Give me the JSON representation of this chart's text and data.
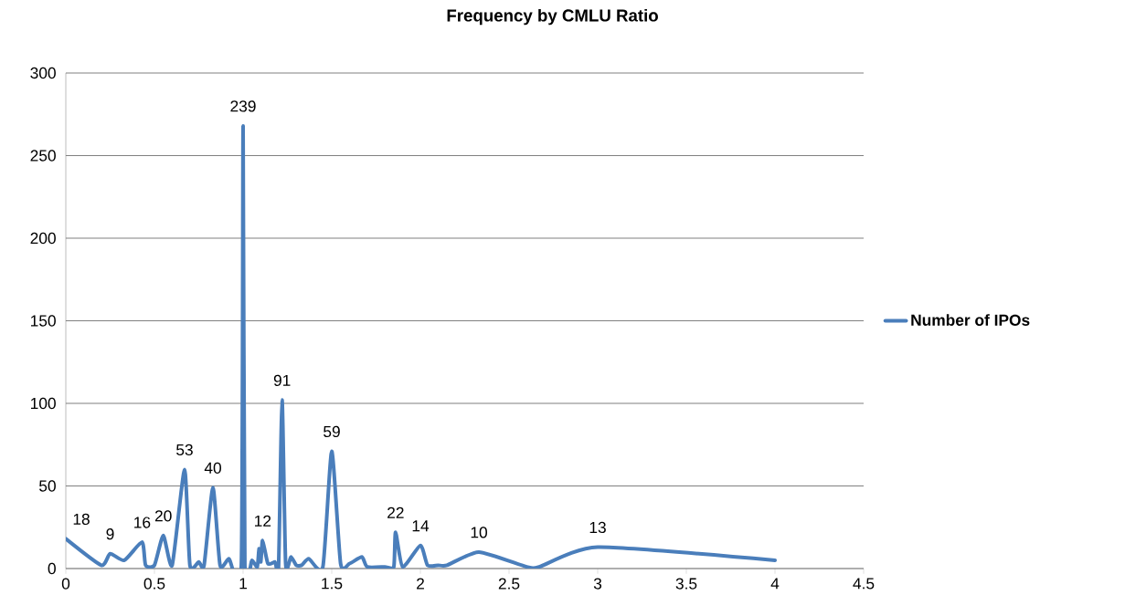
{
  "chart_data": {
    "type": "line",
    "title": "Frequency by CMLU Ratio",
    "series": [
      {
        "name": "Number of IPOs",
        "color": "#4a7ebb",
        "x": [
          0,
          0.2,
          0.25,
          0.33,
          0.43,
          0.45,
          0.5,
          0.55,
          0.6,
          0.67,
          0.7,
          0.75,
          0.78,
          0.83,
          0.87,
          0.92,
          0.99,
          1.0,
          1.01,
          1.05,
          1.08,
          1.09,
          1.1,
          1.11,
          1.14,
          1.18,
          1.2,
          1.22,
          1.24,
          1.27,
          1.3,
          1.33,
          1.37,
          1.45,
          1.5,
          1.55,
          1.6,
          1.67,
          1.7,
          1.8,
          1.85,
          1.86,
          1.9,
          2.0,
          2.04,
          2.1,
          2.15,
          2.33,
          2.6,
          2.67,
          3.0,
          4.0
        ],
        "values": [
          18,
          2,
          9,
          5,
          16,
          2,
          2,
          20,
          2,
          60,
          2,
          4,
          2,
          49,
          2,
          6,
          2,
          268,
          2,
          5,
          1,
          12,
          4,
          17,
          3,
          4,
          1,
          102,
          3,
          7,
          2,
          2,
          6,
          1,
          71,
          3,
          3,
          7,
          1,
          1,
          1,
          22,
          1,
          14,
          2,
          2,
          2,
          10,
          1,
          1,
          13,
          5
        ]
      }
    ],
    "xlim": [
      0,
      4.5
    ],
    "xticks": [
      0,
      0.5,
      1,
      1.5,
      2,
      2.5,
      3,
      3.5,
      4,
      4.5
    ],
    "ylim": [
      0,
      300
    ],
    "yticks": [
      0,
      50,
      100,
      150,
      200,
      250,
      300
    ],
    "grid": "y",
    "legend": "right",
    "marker": "none",
    "line_style": "solid",
    "annotations": [
      {
        "text": "18",
        "x": 0,
        "y": 18
      },
      {
        "text": "9",
        "x": 0.25,
        "y": 9
      },
      {
        "text": "16",
        "x": 0.43,
        "y": 16
      },
      {
        "text": "20",
        "x": 0.55,
        "y": 20
      },
      {
        "text": "53",
        "x": 0.67,
        "y": 60
      },
      {
        "text": "40",
        "x": 0.83,
        "y": 49
      },
      {
        "text": "239",
        "x": 1.0,
        "y": 268
      },
      {
        "text": "12",
        "x": 1.11,
        "y": 17
      },
      {
        "text": "91",
        "x": 1.22,
        "y": 102
      },
      {
        "text": "59",
        "x": 1.5,
        "y": 71
      },
      {
        "text": "22",
        "x": 1.86,
        "y": 22
      },
      {
        "text": "14",
        "x": 2.0,
        "y": 14
      },
      {
        "text": "10",
        "x": 2.33,
        "y": 10
      },
      {
        "text": "13",
        "x": 3.0,
        "y": 13
      }
    ]
  }
}
